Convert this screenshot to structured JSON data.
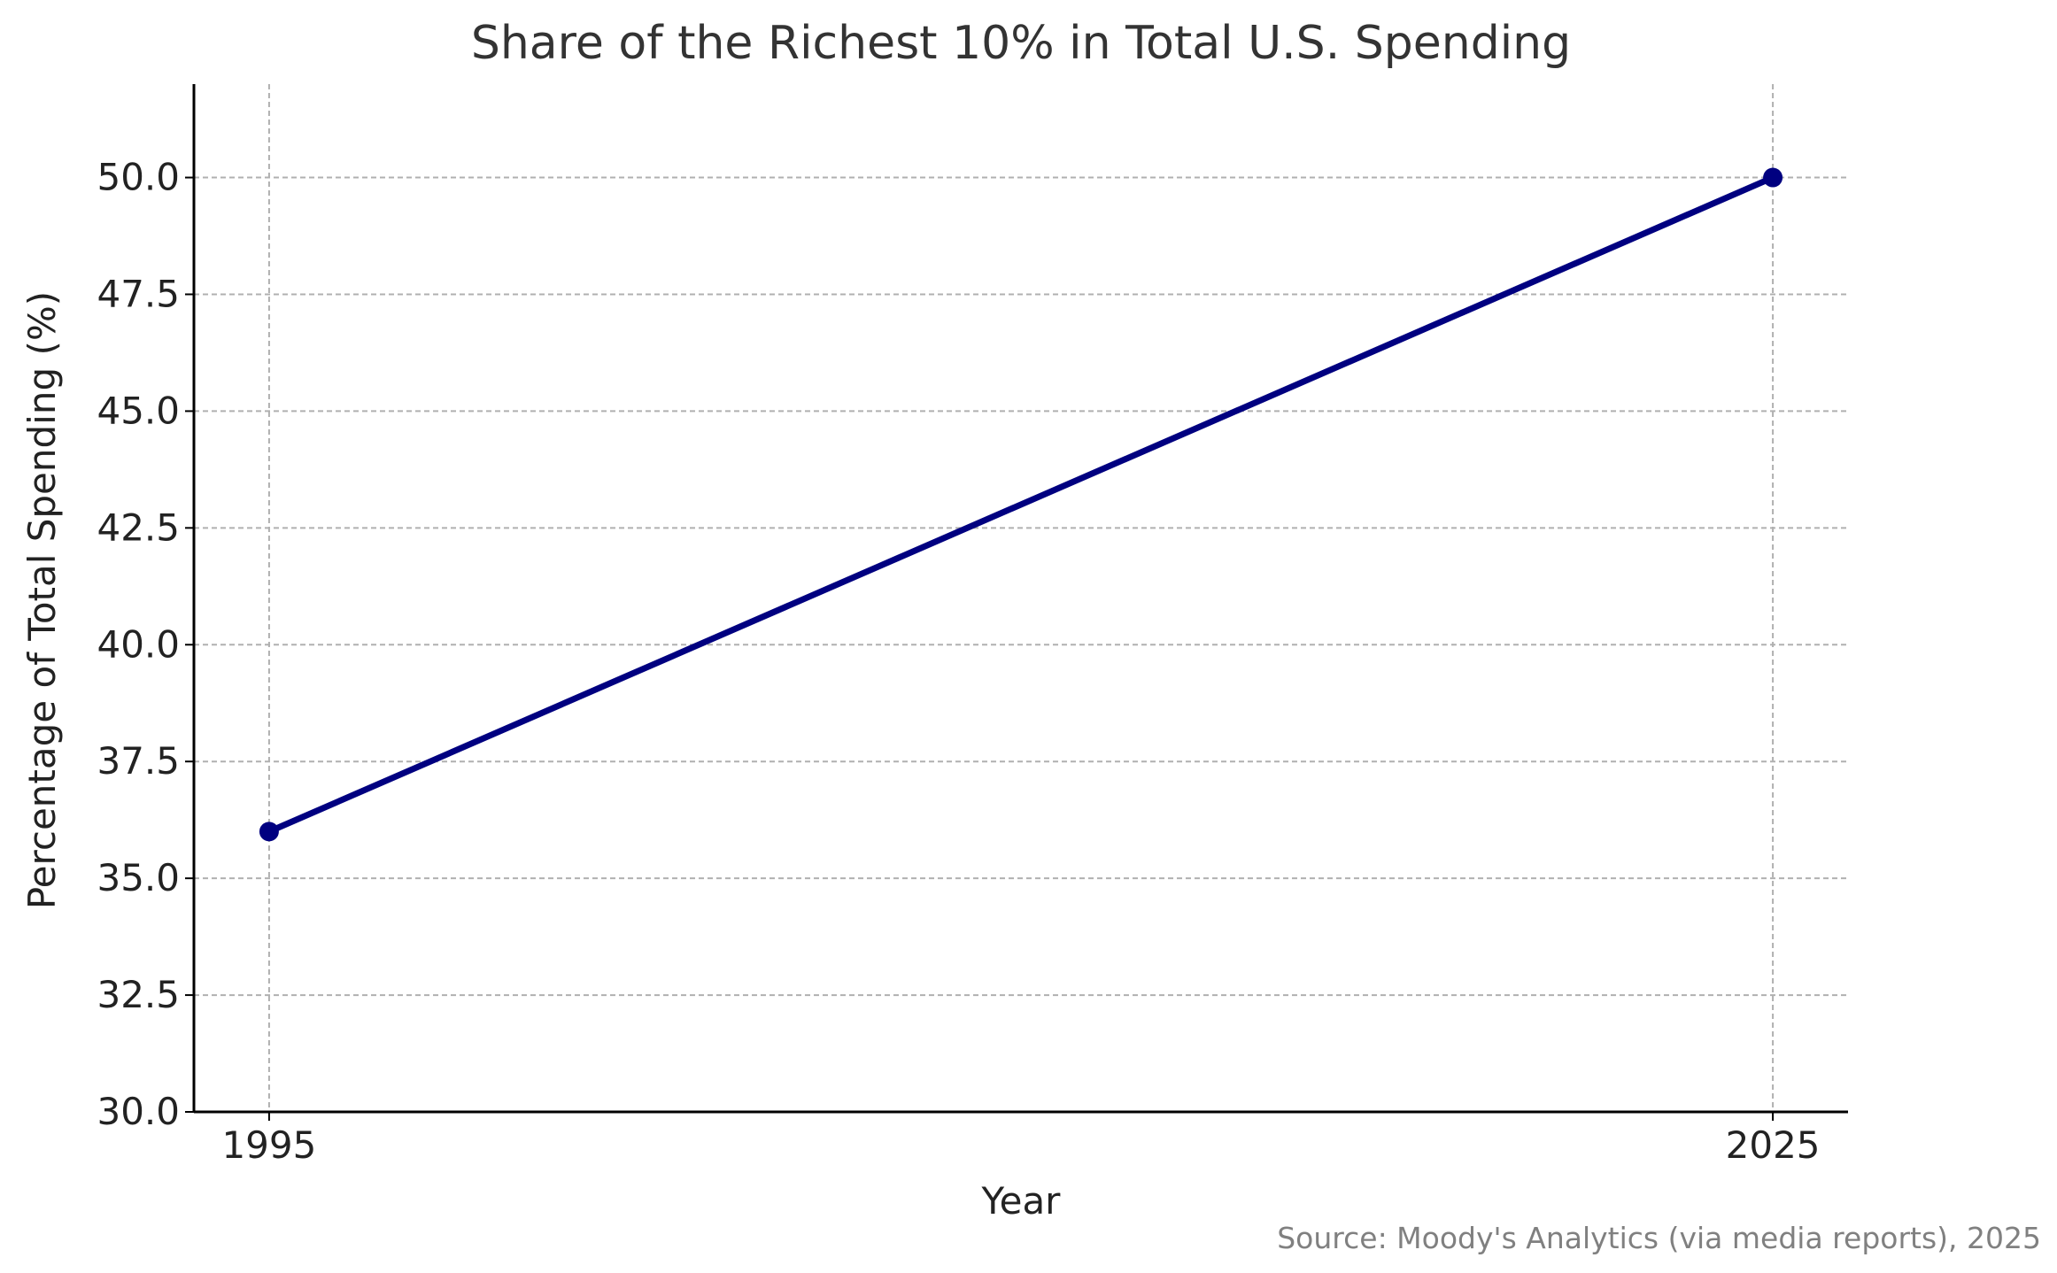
{
  "chart_data": {
    "type": "line",
    "title": "Share of the Richest 10% in Total U.S. Spending",
    "xlabel": "Year",
    "ylabel": "Percentage of Total Spending (%)",
    "x": [
      1995,
      2025
    ],
    "x_tick_labels": [
      "1995",
      "2025"
    ],
    "series": [
      {
        "values": [
          36.0,
          50.0
        ],
        "color": "#000080",
        "marker": "circle"
      }
    ],
    "ylim": [
      30.0,
      52.0
    ],
    "y_ticks": [
      30.0,
      32.5,
      35.0,
      37.5,
      40.0,
      42.5,
      45.0,
      47.5,
      50.0
    ],
    "y_tick_labels": [
      "30.0",
      "32.5",
      "35.0",
      "37.5",
      "40.0",
      "42.5",
      "45.0",
      "47.5",
      "50.0"
    ],
    "xlim": [
      1993.5,
      2026.5
    ],
    "grid": true,
    "source_note": "Source: Moody's Analytics (via media reports), 2025"
  }
}
